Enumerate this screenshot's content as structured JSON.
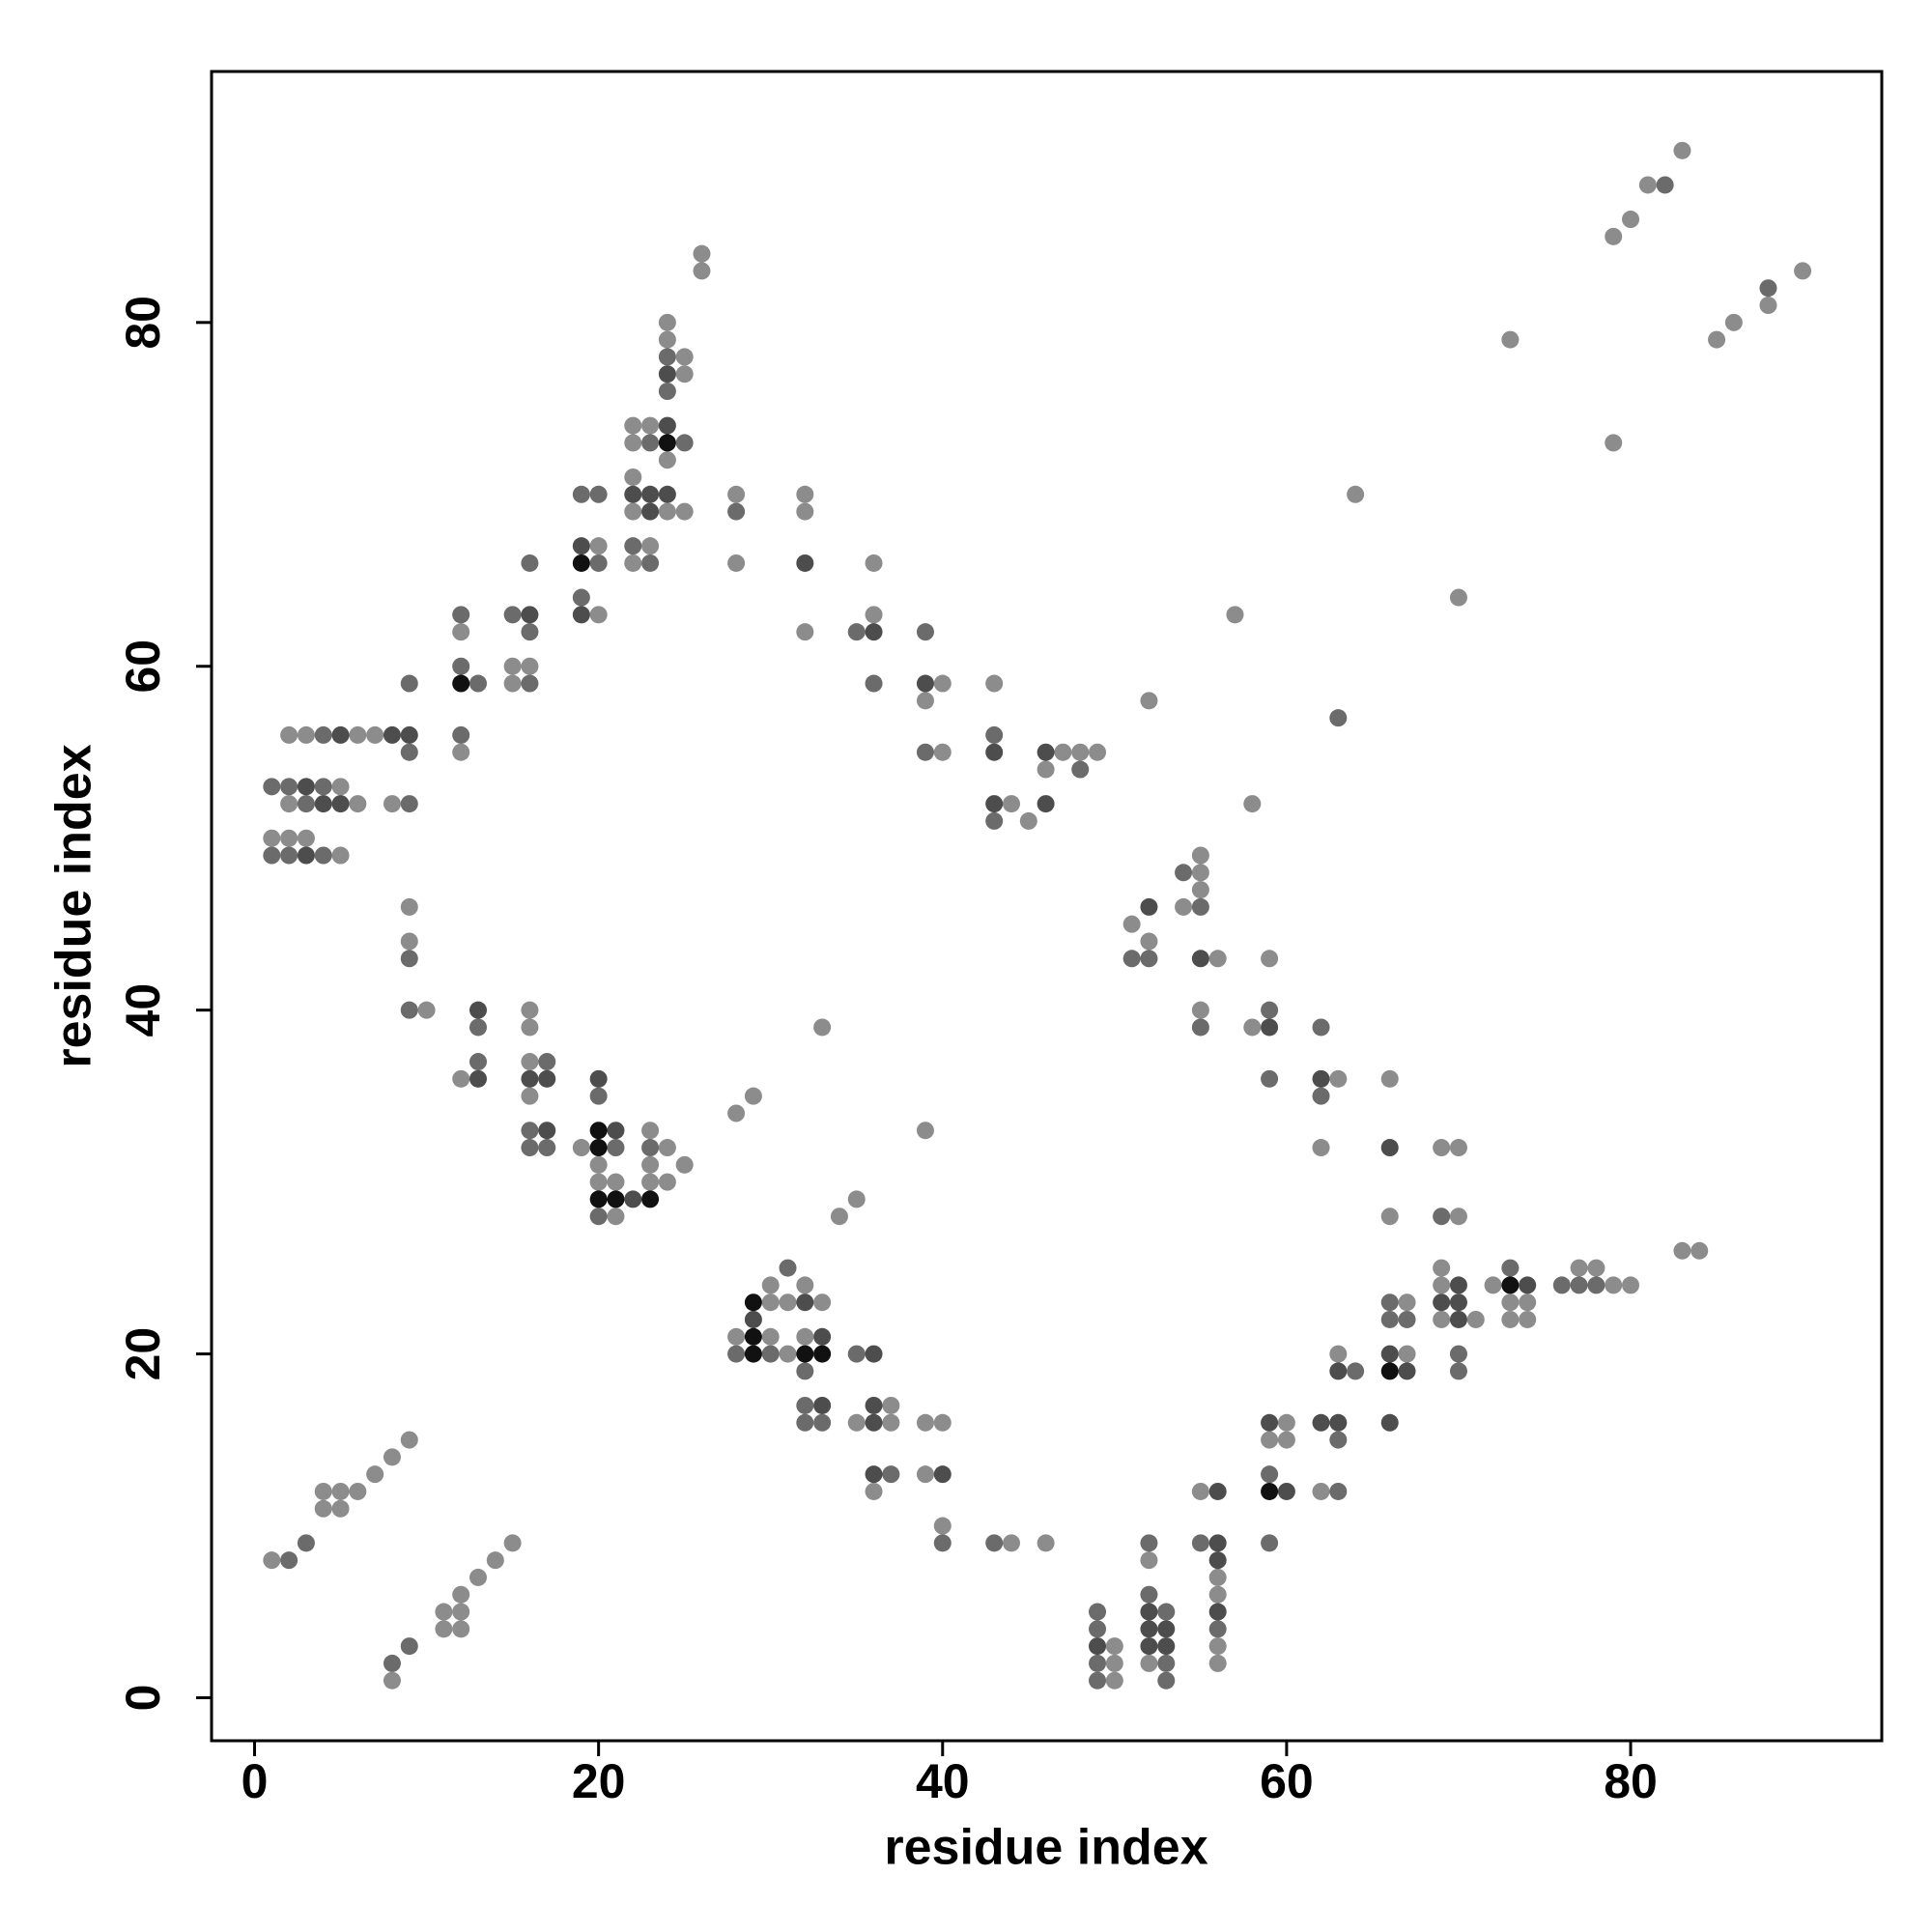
{
  "chart_data": {
    "type": "scatter",
    "xlabel": "residue index",
    "ylabel": "residue index",
    "xlim": [
      -2.5,
      94.6
    ],
    "ylim": [
      -2.5,
      94.6
    ],
    "xticks": [
      0,
      20,
      40,
      60,
      80
    ],
    "yticks": [
      0,
      20,
      40,
      60,
      80
    ],
    "series": [
      {
        "color": "#8c8c8c",
        "x": [
          1,
          1,
          2,
          2,
          2,
          3,
          3,
          4,
          4,
          5,
          5,
          5,
          5,
          6,
          6,
          6,
          7,
          7,
          8,
          8,
          8,
          9,
          9,
          9,
          10,
          11,
          11,
          12,
          12,
          12,
          12,
          12,
          12,
          13,
          14,
          15,
          15,
          15,
          16,
          16,
          16,
          16,
          16,
          19,
          20,
          20,
          20,
          20,
          21,
          21,
          22,
          22,
          22,
          22,
          22,
          23,
          23,
          23,
          23,
          23,
          24,
          24,
          24,
          24,
          24,
          24,
          25,
          25,
          25,
          25,
          26,
          26,
          28,
          28,
          28,
          28,
          29,
          30,
          30,
          30,
          31,
          31,
          32,
          32,
          32,
          32,
          32,
          33,
          33,
          34,
          35,
          35,
          36,
          36,
          36,
          37,
          37,
          39,
          39,
          39,
          39,
          40,
          40,
          40,
          40,
          43,
          44,
          44,
          45,
          46,
          46,
          47,
          48,
          49,
          50,
          50,
          50,
          51,
          52,
          52,
          52,
          52,
          54,
          55,
          55,
          55,
          55,
          55,
          56,
          56,
          56,
          56,
          56,
          57,
          58,
          58,
          59,
          59,
          60,
          60,
          62,
          62,
          63,
          63,
          64,
          66,
          66,
          67,
          67,
          69,
          69,
          69,
          69,
          70,
          70,
          70,
          71,
          72,
          73,
          73,
          73,
          74,
          74,
          77,
          78,
          79,
          79,
          79,
          80,
          80,
          81,
          83,
          83,
          84,
          85,
          86,
          88,
          90
        ],
        "values": [
          50,
          8,
          56,
          52,
          50,
          56,
          50,
          12,
          11,
          53,
          49,
          12,
          11,
          56,
          52,
          12,
          56,
          13,
          52,
          14,
          1,
          46,
          44,
          15,
          40,
          5,
          4,
          62,
          55,
          36,
          6,
          5,
          4,
          7,
          8,
          60,
          59,
          9,
          60,
          40,
          39,
          37,
          35,
          32,
          67,
          63,
          31,
          30,
          30,
          28,
          74,
          73,
          71,
          69,
          66,
          74,
          67,
          33,
          31,
          30,
          80,
          79,
          72,
          69,
          32,
          30,
          78,
          77,
          69,
          31,
          84,
          83,
          70,
          66,
          34,
          21,
          35,
          24,
          23,
          21,
          23,
          20,
          70,
          69,
          62,
          24,
          21,
          39,
          23,
          28,
          29,
          16,
          66,
          63,
          12,
          17,
          16,
          58,
          33,
          16,
          13,
          59,
          55,
          16,
          10,
          59,
          52,
          9,
          51,
          54,
          9,
          55,
          55,
          55,
          3,
          2,
          1,
          45,
          58,
          44,
          8,
          2,
          46,
          49,
          48,
          47,
          40,
          12,
          43,
          7,
          6,
          3,
          2,
          63,
          52,
          39,
          43,
          15,
          16,
          15,
          32,
          12,
          36,
          20,
          70,
          36,
          28,
          23,
          20,
          32,
          25,
          24,
          22,
          64,
          32,
          28,
          22,
          24,
          79,
          23,
          22,
          23,
          22,
          25,
          25,
          85,
          73,
          24,
          86,
          24,
          88,
          90,
          26,
          26,
          79,
          80,
          81,
          83
        ]
      },
      {
        "color": "#6b6b6b",
        "x": [
          1,
          1,
          2,
          2,
          2,
          3,
          3,
          4,
          4,
          4,
          8,
          9,
          9,
          9,
          9,
          9,
          9,
          12,
          12,
          12,
          13,
          13,
          13,
          15,
          16,
          16,
          16,
          16,
          16,
          17,
          17,
          19,
          19,
          20,
          20,
          20,
          20,
          21,
          22,
          23,
          23,
          23,
          24,
          24,
          25,
          28,
          28,
          30,
          31,
          32,
          32,
          32,
          33,
          35,
          35,
          36,
          37,
          39,
          39,
          40,
          43,
          43,
          43,
          48,
          49,
          49,
          49,
          49,
          51,
          52,
          52,
          52,
          53,
          53,
          53,
          54,
          55,
          55,
          55,
          56,
          59,
          59,
          59,
          59,
          62,
          62,
          63,
          63,
          63,
          64,
          66,
          66,
          67,
          69,
          70,
          70,
          73,
          76,
          77,
          78,
          82,
          88
        ],
        "values": [
          53,
          49,
          53,
          49,
          8,
          52,
          9,
          56,
          53,
          49,
          2,
          59,
          55,
          52,
          43,
          40,
          3,
          63,
          60,
          56,
          59,
          39,
          37,
          63,
          66,
          62,
          59,
          33,
          32,
          37,
          32,
          70,
          64,
          70,
          66,
          35,
          28,
          32,
          67,
          73,
          66,
          32,
          78,
          76,
          73,
          69,
          20,
          20,
          25,
          19,
          17,
          16,
          16,
          62,
          20,
          59,
          13,
          62,
          55,
          9,
          56,
          51,
          9,
          54,
          5,
          4,
          2,
          1,
          43,
          43,
          9,
          6,
          5,
          2,
          1,
          48,
          46,
          39,
          9,
          4,
          40,
          36,
          13,
          9,
          39,
          35,
          57,
          15,
          12,
          19,
          23,
          22,
          22,
          28,
          20,
          19,
          25,
          24,
          24,
          24,
          88,
          82
        ]
      },
      {
        "color": "#4d4d4d",
        "x": [
          3,
          3,
          4,
          5,
          5,
          8,
          9,
          13,
          13,
          16,
          16,
          17,
          17,
          19,
          19,
          20,
          21,
          22,
          22,
          23,
          23,
          24,
          24,
          24,
          29,
          32,
          32,
          33,
          33,
          36,
          36,
          36,
          36,
          36,
          39,
          40,
          43,
          43,
          46,
          46,
          49,
          52,
          52,
          52,
          52,
          53,
          53,
          55,
          56,
          56,
          56,
          56,
          59,
          59,
          60,
          62,
          62,
          63,
          63,
          66,
          66,
          66,
          67,
          69,
          70,
          70,
          70,
          74
        ],
        "values": [
          53,
          49,
          52,
          56,
          52,
          56,
          56,
          40,
          36,
          63,
          36,
          36,
          33,
          67,
          63,
          36,
          33,
          70,
          29,
          70,
          69,
          77,
          74,
          70,
          22,
          66,
          23,
          21,
          17,
          62,
          20,
          17,
          16,
          13,
          59,
          13,
          55,
          52,
          55,
          52,
          3,
          46,
          5,
          4,
          3,
          4,
          3,
          43,
          12,
          9,
          8,
          5,
          39,
          16,
          12,
          36,
          16,
          19,
          16,
          32,
          20,
          16,
          19,
          23,
          24,
          23,
          22,
          24
        ]
      },
      {
        "color": "#111111",
        "x": [
          12,
          19,
          20,
          20,
          20,
          21,
          23,
          24,
          29,
          29,
          29,
          32,
          33,
          59,
          66,
          73
        ],
        "values": [
          59,
          66,
          33,
          32,
          29,
          29,
          29,
          73,
          23,
          21,
          20,
          20,
          20,
          12,
          19,
          24
        ]
      }
    ]
  }
}
